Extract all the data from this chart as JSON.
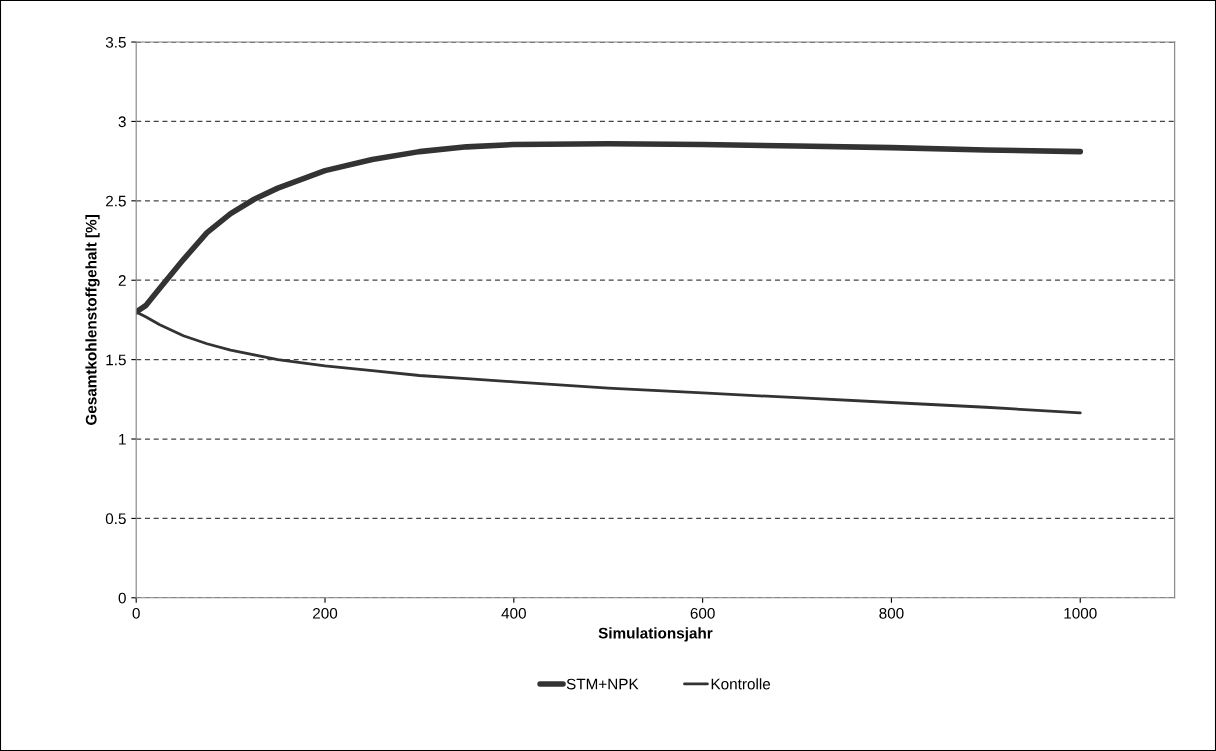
{
  "chart_data": {
    "type": "line",
    "xlabel": "Simulationsjahr",
    "ylabel": "Gesamtkohlenstoffgehalt [%]",
    "x": [
      0,
      10,
      25,
      50,
      75,
      100,
      125,
      150,
      200,
      250,
      300,
      350,
      400,
      500,
      600,
      700,
      800,
      900,
      1000
    ],
    "series": [
      {
        "name": "STM+NPK",
        "color": "#333333",
        "values": [
          1.8,
          1.84,
          1.95,
          2.13,
          2.3,
          2.42,
          2.51,
          2.58,
          2.69,
          2.76,
          2.81,
          2.84,
          2.855,
          2.86,
          2.855,
          2.845,
          2.835,
          2.82,
          2.81
        ]
      },
      {
        "name": "Kontrolle",
        "color": "#333333",
        "values": [
          1.8,
          1.77,
          1.72,
          1.65,
          1.6,
          1.56,
          1.53,
          1.5,
          1.46,
          1.43,
          1.4,
          1.38,
          1.36,
          1.32,
          1.29,
          1.26,
          1.23,
          1.2,
          1.165
        ]
      }
    ],
    "xlim": [
      0,
      1100
    ],
    "xticks": [
      0,
      200,
      400,
      600,
      800,
      1000
    ],
    "ylim": [
      0,
      3.5
    ],
    "yticks": [
      0,
      0.5,
      1,
      1.5,
      2,
      2.5,
      3,
      3.5
    ],
    "grid": "y",
    "legend": "bottom",
    "marker": "none",
    "line_style": "solid"
  }
}
